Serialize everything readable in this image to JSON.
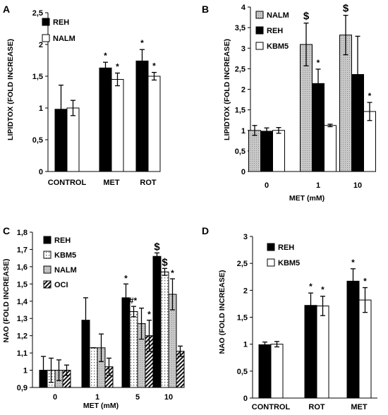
{
  "chart_data": [
    {
      "panel": "A",
      "type": "bar",
      "categories": [
        "CONTROL",
        "MET",
        "ROT"
      ],
      "series": [
        {
          "name": "REH",
          "fill": "solid",
          "values": [
            0.98,
            1.63,
            1.74
          ],
          "errors": [
            0.38,
            0.09,
            0.18
          ]
        },
        {
          "name": "NALM",
          "fill": "white",
          "values": [
            1.0,
            1.45,
            1.5
          ],
          "errors": [
            0.12,
            0.1,
            0.06
          ]
        }
      ],
      "annotations": [
        {
          "series": 0,
          "index": 1,
          "text": "*"
        },
        {
          "series": 1,
          "index": 1,
          "text": "*"
        },
        {
          "series": 0,
          "index": 2,
          "text": "*"
        },
        {
          "series": 1,
          "index": 2,
          "text": "*"
        }
      ],
      "ylabel": "LIPIDTOX (FOLD INCREASE)",
      "xlabel": "",
      "ylim": [
        0,
        2.5
      ],
      "yticks": [
        "0",
        "0,5",
        "1",
        "1,5",
        "2",
        "2,5"
      ],
      "legend_pos": "top-left"
    },
    {
      "panel": "B",
      "type": "bar",
      "categories": [
        "0",
        "1",
        "10"
      ],
      "series": [
        {
          "name": "NALM",
          "fill": "gray",
          "values": [
            1.0,
            3.09,
            3.32
          ],
          "errors": [
            0.12,
            0.52,
            0.48
          ]
        },
        {
          "name": "REH",
          "fill": "solid",
          "values": [
            0.98,
            2.14,
            2.36
          ],
          "errors": [
            0.08,
            0.35,
            0.93
          ]
        },
        {
          "name": "KBM5",
          "fill": "white",
          "values": [
            1.0,
            1.12,
            1.46
          ],
          "errors": [
            0.07,
            0.03,
            0.22
          ]
        }
      ],
      "annotations": [
        {
          "series": 0,
          "index": 1,
          "text": "$"
        },
        {
          "series": 1,
          "index": 1,
          "text": "*"
        },
        {
          "series": 0,
          "index": 2,
          "text": "$"
        },
        {
          "series": 2,
          "index": 2,
          "text": "*"
        }
      ],
      "ylabel": "LIPIDTOX (FOLD INCREASE)",
      "xlabel": "MET (mM)",
      "ylim": [
        0,
        4
      ],
      "yticks": [
        "0",
        "0,5",
        "1",
        "1,5",
        "2",
        "2,5",
        "3",
        "3,5",
        "4"
      ],
      "legend_pos": "top-left"
    },
    {
      "panel": "C",
      "type": "bar",
      "categories": [
        "0",
        "1",
        "5",
        "10"
      ],
      "series": [
        {
          "name": "REH",
          "fill": "solid",
          "values": [
            1.0,
            1.29,
            1.42,
            1.66
          ],
          "errors": [
            0.08,
            0.13,
            0.08,
            0.02
          ]
        },
        {
          "name": "KBM5",
          "fill": "dots",
          "values": [
            1.0,
            1.13,
            1.34,
            1.57
          ],
          "errors": [
            0.07,
            0.0,
            0.03,
            0.02
          ]
        },
        {
          "name": "NALM",
          "fill": "gray",
          "values": [
            1.0,
            1.13,
            1.27,
            1.44
          ],
          "errors": [
            0.06,
            0.08,
            0.09,
            0.09
          ]
        },
        {
          "name": "OCI",
          "fill": "hatch",
          "values": [
            1.0,
            1.02,
            1.2,
            1.11
          ],
          "errors": [
            0.03,
            0.05,
            0.09,
            0.03
          ]
        }
      ],
      "annotations": [
        {
          "series": 0,
          "index": 2,
          "text": "*"
        },
        {
          "series": 1,
          "index": 2,
          "text": "#*"
        },
        {
          "series": 3,
          "index": 2,
          "text": "*"
        },
        {
          "series": 0,
          "index": 3,
          "text": "$"
        },
        {
          "series": 1,
          "index": 3,
          "text": "$"
        },
        {
          "series": 2,
          "index": 3,
          "text": "*"
        }
      ],
      "ylabel": "NAO (FOLD INCREASE)",
      "xlabel": "MET (mM)",
      "ylim": [
        0.9,
        1.8
      ],
      "yticks": [
        "0,9",
        "1",
        "1,1",
        "1,2",
        "1,3",
        "1,4",
        "1,5",
        "1,6",
        "1,7",
        "1,8"
      ],
      "legend_pos": "top-left"
    },
    {
      "panel": "D",
      "type": "bar",
      "categories": [
        "CONTROL",
        "ROT",
        "MET"
      ],
      "series": [
        {
          "name": "REH",
          "fill": "solid",
          "values": [
            0.99,
            1.72,
            2.17
          ],
          "errors": [
            0.05,
            0.23,
            0.23
          ]
        },
        {
          "name": "KBM5",
          "fill": "white",
          "values": [
            1.0,
            1.71,
            1.82
          ],
          "errors": [
            0.05,
            0.18,
            0.23
          ]
        }
      ],
      "annotations": [
        {
          "series": 0,
          "index": 1,
          "text": "*"
        },
        {
          "series": 1,
          "index": 1,
          "text": "*"
        },
        {
          "series": 0,
          "index": 2,
          "text": "*"
        },
        {
          "series": 1,
          "index": 2,
          "text": "*"
        }
      ],
      "ylabel": "NAO (FOLD INCREASE)",
      "xlabel": "",
      "ylim": [
        0,
        3
      ],
      "yticks": [
        "0",
        "0,5",
        "1",
        "1,5",
        "2",
        "2,5",
        "3"
      ],
      "legend_pos": "top-left"
    }
  ]
}
